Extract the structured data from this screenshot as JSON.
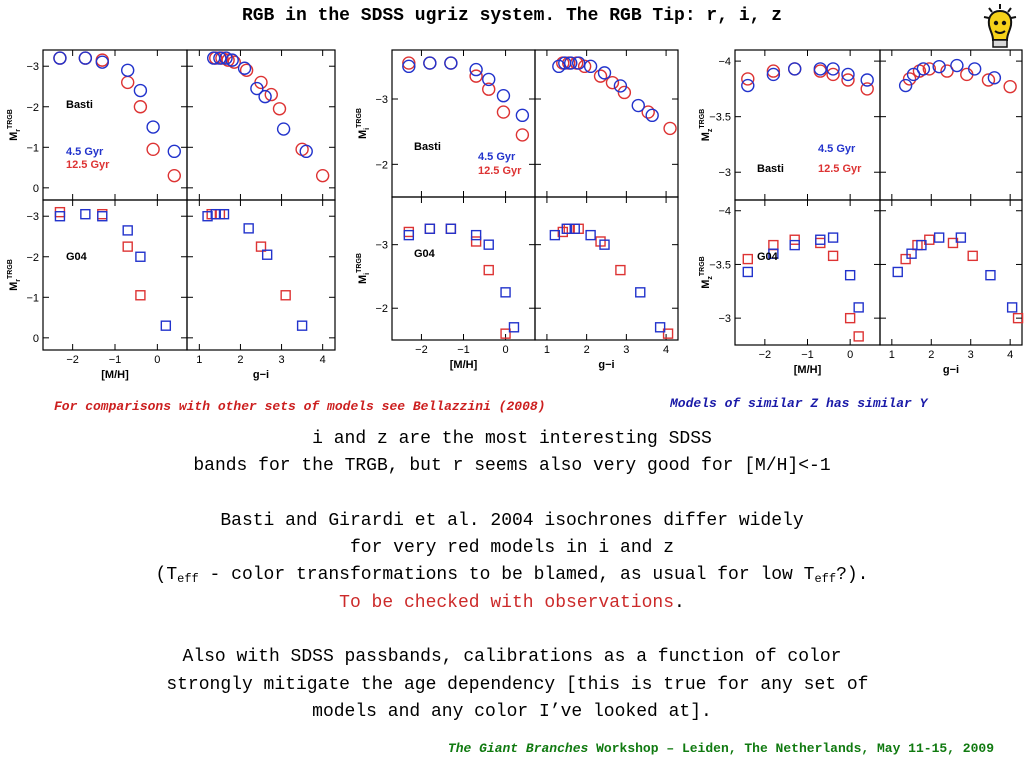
{
  "slide": {
    "title": "RGB in the SDSS ugriz system. The RGB Tip: r, i, z",
    "note_left": "For comparisons with other sets of models see Bellazzini (2008)",
    "note_right": "Models of similar Z has similar Y",
    "footer_italic": "The Giant Branches",
    "footer_rest": " Workshop – Leiden, The Netherlands, May 11-15, 2009",
    "para1_line1": "i and z are the most interesting SDSS",
    "para1_line2": "bands for the TRGB, but r seems also very good for [M/H]<-1",
    "para2_line1": "Basti and Girardi et al. 2004 isochrones differ widely",
    "para2_line2": "for very red models in i and z",
    "para2_line3_a": "(T",
    "para2_line3_sub1": "eff",
    "para2_line3_b": " - color transformations to be blamed, as usual for low T",
    "para2_line3_sub2": "eff",
    "para2_line3_c": "?).",
    "para2_line4_red": "To be checked with observations",
    "para2_line4_end": ".",
    "para3_line1": "Also with SDSS passbands, calibrations as a function of color",
    "para3_line2": " strongly mitigate the age dependency [this is true for any set of",
    "para3_line3": "models and any color I’ve looked at]."
  },
  "colors": {
    "young": "#2233cc",
    "old": "#dd3333",
    "title": "#000000",
    "note_left": "#cc1f1f",
    "note_right": "#1a1aa8",
    "footer": "#107a10"
  },
  "icons": {
    "mascot": "lightbulb-head-icon"
  },
  "chart_data": [
    {
      "type": "scatter",
      "band": "r",
      "ylabel": "M",
      "ylabel_sup": "TRGB",
      "ylabel_sub": "r",
      "ylim": [
        0.3,
        -3.4
      ],
      "yticks": [
        -3,
        -2,
        -1,
        0
      ],
      "ytick_labels": [
        "−3",
        "−2",
        "−1",
        "0"
      ],
      "left": {
        "xlim": [
          -2.7,
          0.7
        ],
        "xticks": [
          -2,
          -1,
          0
        ],
        "xtick_labels": [
          "−2",
          "−1",
          "0"
        ],
        "xlabel": "[M/H]"
      },
      "right": {
        "xlim": [
          0.7,
          4.3
        ],
        "xticks": [
          1,
          2,
          3,
          4
        ],
        "xtick_labels": [
          "1",
          "2",
          "3",
          "4"
        ],
        "xlabel": "g−i"
      },
      "top": {
        "label": "Basti",
        "legend": [
          "4.5 Gyr",
          "12.5 Gyr"
        ],
        "ylim": [
          0.3,
          -3.4
        ],
        "yticks": [
          -3,
          -2,
          -1,
          0
        ],
        "ytick_labels": [
          "−3",
          "−2",
          "−1",
          "0"
        ],
        "young_mh": [
          [
            -2.3,
            -3.2
          ],
          [
            -1.7,
            -3.2
          ],
          [
            -1.3,
            -3.1
          ],
          [
            -0.7,
            -2.9
          ],
          [
            -0.4,
            -2.4
          ],
          [
            -0.1,
            -1.5
          ],
          [
            0.4,
            -0.9
          ]
        ],
        "old_mh": [
          [
            -2.3,
            -3.2
          ],
          [
            -1.7,
            -3.2
          ],
          [
            -1.3,
            -3.15
          ],
          [
            -0.7,
            -2.6
          ],
          [
            -0.4,
            -2.0
          ],
          [
            -0.1,
            -0.95
          ],
          [
            0.4,
            -0.3
          ]
        ],
        "young_col": [
          [
            1.35,
            -3.2
          ],
          [
            1.5,
            -3.2
          ],
          [
            1.65,
            -3.2
          ],
          [
            1.8,
            -3.15
          ],
          [
            2.1,
            -2.95
          ],
          [
            2.4,
            -2.45
          ],
          [
            2.6,
            -2.25
          ],
          [
            3.05,
            -1.45
          ],
          [
            3.6,
            -0.9
          ]
        ],
        "old_col": [
          [
            1.4,
            -3.2
          ],
          [
            1.55,
            -3.2
          ],
          [
            1.7,
            -3.15
          ],
          [
            1.85,
            -3.1
          ],
          [
            2.15,
            -2.9
          ],
          [
            2.5,
            -2.6
          ],
          [
            2.75,
            -2.3
          ],
          [
            2.95,
            -1.95
          ],
          [
            3.5,
            -0.95
          ],
          [
            4.0,
            -0.3
          ]
        ]
      },
      "bottom": {
        "label": "G04",
        "ylim": [
          0.3,
          -3.4
        ],
        "yticks": [
          -3,
          -2,
          -1,
          0
        ],
        "ytick_labels": [
          "−3",
          "−2",
          "−1",
          "0"
        ],
        "young_mh": [
          [
            -2.3,
            -3.0
          ],
          [
            -1.7,
            -3.05
          ],
          [
            -1.3,
            -3.0
          ],
          [
            -0.7,
            -2.65
          ],
          [
            -0.4,
            -2.0
          ],
          [
            0.2,
            -0.3
          ]
        ],
        "old_mh": [
          [
            -2.3,
            -3.1
          ],
          [
            -1.3,
            -3.05
          ],
          [
            -0.7,
            -2.25
          ],
          [
            -0.4,
            -1.05
          ]
        ],
        "young_col": [
          [
            1.2,
            -3.0
          ],
          [
            1.4,
            -3.05
          ],
          [
            1.6,
            -3.05
          ],
          [
            2.2,
            -2.7
          ],
          [
            2.65,
            -2.05
          ],
          [
            3.5,
            -0.3
          ]
        ],
        "old_col": [
          [
            1.3,
            -3.05
          ],
          [
            1.5,
            -3.05
          ],
          [
            2.5,
            -2.25
          ],
          [
            3.1,
            -1.05
          ]
        ]
      }
    },
    {
      "type": "scatter",
      "band": "i",
      "ylabel": "M",
      "ylabel_sup": "TRGB",
      "ylabel_sub": "i",
      "left": {
        "xlim": [
          -2.7,
          0.7
        ],
        "xticks": [
          -2,
          -1,
          0
        ],
        "xtick_labels": [
          "−2",
          "−1",
          "0"
        ],
        "xlabel": "[M/H]"
      },
      "right": {
        "xlim": [
          0.7,
          4.3
        ],
        "xticks": [
          1,
          2,
          3,
          4
        ],
        "xtick_labels": [
          "1",
          "2",
          "3",
          "4"
        ],
        "xlabel": "g−i"
      },
      "top": {
        "label": "Basti",
        "legend": [
          "4.5 Gyr",
          "12.5 Gyr"
        ],
        "ylim": [
          -1.5,
          -3.75
        ],
        "yticks": [
          -3,
          -2
        ],
        "ytick_labels": [
          "−3",
          "−2"
        ],
        "young_mh": [
          [
            -2.3,
            -3.5
          ],
          [
            -1.8,
            -3.55
          ],
          [
            -1.3,
            -3.55
          ],
          [
            -0.7,
            -3.45
          ],
          [
            -0.4,
            -3.3
          ],
          [
            -0.05,
            -3.05
          ],
          [
            0.4,
            -2.75
          ]
        ],
        "old_mh": [
          [
            -2.3,
            -3.55
          ],
          [
            -1.8,
            -3.55
          ],
          [
            -1.3,
            -3.55
          ],
          [
            -0.7,
            -3.35
          ],
          [
            -0.4,
            -3.15
          ],
          [
            -0.05,
            -2.8
          ],
          [
            0.4,
            -2.45
          ]
        ],
        "young_col": [
          [
            1.3,
            -3.5
          ],
          [
            1.45,
            -3.55
          ],
          [
            1.6,
            -3.55
          ],
          [
            1.8,
            -3.55
          ],
          [
            2.1,
            -3.5
          ],
          [
            2.45,
            -3.4
          ],
          [
            2.85,
            -3.2
          ],
          [
            3.3,
            -2.9
          ],
          [
            3.65,
            -2.75
          ]
        ],
        "old_col": [
          [
            1.4,
            -3.55
          ],
          [
            1.55,
            -3.55
          ],
          [
            1.75,
            -3.55
          ],
          [
            1.95,
            -3.5
          ],
          [
            2.35,
            -3.35
          ],
          [
            2.65,
            -3.25
          ],
          [
            2.95,
            -3.1
          ],
          [
            3.55,
            -2.8
          ],
          [
            4.1,
            -2.55
          ]
        ]
      },
      "bottom": {
        "label": "G04",
        "ylim": [
          -1.5,
          -3.75
        ],
        "yticks": [
          -3,
          -2
        ],
        "ytick_labels": [
          "−3",
          "−2"
        ],
        "young_mh": [
          [
            -2.3,
            -3.15
          ],
          [
            -1.8,
            -3.25
          ],
          [
            -1.3,
            -3.25
          ],
          [
            -0.7,
            -3.15
          ],
          [
            -0.4,
            -3.0
          ],
          [
            0.0,
            -2.25
          ],
          [
            0.2,
            -1.7
          ]
        ],
        "old_mh": [
          [
            -2.3,
            -3.2
          ],
          [
            -1.8,
            -3.25
          ],
          [
            -1.3,
            -3.25
          ],
          [
            -0.7,
            -3.05
          ],
          [
            -0.4,
            -2.6
          ],
          [
            0.0,
            -1.6
          ]
        ],
        "young_col": [
          [
            1.2,
            -3.15
          ],
          [
            1.5,
            -3.25
          ],
          [
            1.7,
            -3.25
          ],
          [
            2.1,
            -3.15
          ],
          [
            2.45,
            -3.0
          ],
          [
            3.35,
            -2.25
          ],
          [
            3.85,
            -1.7
          ]
        ],
        "old_col": [
          [
            1.4,
            -3.2
          ],
          [
            1.55,
            -3.25
          ],
          [
            1.8,
            -3.25
          ],
          [
            2.35,
            -3.05
          ],
          [
            2.85,
            -2.6
          ],
          [
            4.05,
            -1.6
          ]
        ]
      }
    },
    {
      "type": "scatter",
      "band": "z",
      "ylabel": "M",
      "ylabel_sup": "TRGB",
      "ylabel_sub": "z",
      "left": {
        "xlim": [
          -2.7,
          0.7
        ],
        "xticks": [
          -2,
          -1,
          0
        ],
        "xtick_labels": [
          "−2",
          "−1",
          "0"
        ],
        "xlabel": "[M/H]"
      },
      "right": {
        "xlim": [
          0.7,
          4.3
        ],
        "xticks": [
          1,
          2,
          3,
          4
        ],
        "xtick_labels": [
          "1",
          "2",
          "3",
          "4"
        ],
        "xlabel": "g−i"
      },
      "top": {
        "label": "Basti",
        "legend": [
          "4.5 Gyr",
          "12.5 Gyr"
        ],
        "ylim": [
          -2.75,
          -4.1
        ],
        "yticks": [
          -4,
          -3.5,
          -3
        ],
        "ytick_labels": [
          "−4",
          "−3.5",
          "−3"
        ],
        "young_mh": [
          [
            -2.4,
            -3.78
          ],
          [
            -1.8,
            -3.88
          ],
          [
            -1.3,
            -3.93
          ],
          [
            -0.7,
            -3.93
          ],
          [
            -0.4,
            -3.93
          ],
          [
            -0.05,
            -3.88
          ],
          [
            0.4,
            -3.83
          ]
        ],
        "old_mh": [
          [
            -2.4,
            -3.84
          ],
          [
            -1.8,
            -3.91
          ],
          [
            -1.3,
            -3.93
          ],
          [
            -0.7,
            -3.91
          ],
          [
            -0.4,
            -3.88
          ],
          [
            -0.05,
            -3.83
          ],
          [
            0.4,
            -3.75
          ]
        ],
        "young_col": [
          [
            1.35,
            -3.78
          ],
          [
            1.55,
            -3.88
          ],
          [
            1.8,
            -3.93
          ],
          [
            2.2,
            -3.95
          ],
          [
            2.65,
            -3.96
          ],
          [
            3.1,
            -3.93
          ],
          [
            3.6,
            -3.85
          ]
        ],
        "old_col": [
          [
            1.45,
            -3.84
          ],
          [
            1.7,
            -3.91
          ],
          [
            1.95,
            -3.93
          ],
          [
            2.4,
            -3.91
          ],
          [
            2.9,
            -3.88
          ],
          [
            3.45,
            -3.83
          ],
          [
            4.0,
            -3.77
          ]
        ]
      },
      "bottom": {
        "label": "G04",
        "ylim": [
          -2.75,
          -4.1
        ],
        "yticks": [
          -4,
          -3.5,
          -3
        ],
        "ytick_labels": [
          "−4",
          "−3.5",
          "−3"
        ],
        "young_mh": [
          [
            -2.4,
            -3.43
          ],
          [
            -1.8,
            -3.6
          ],
          [
            -1.3,
            -3.68
          ],
          [
            -0.7,
            -3.73
          ],
          [
            -0.4,
            -3.75
          ],
          [
            0.0,
            -3.4
          ],
          [
            0.2,
            -3.1
          ]
        ],
        "old_mh": [
          [
            -2.4,
            -3.55
          ],
          [
            -1.8,
            -3.68
          ],
          [
            -1.3,
            -3.73
          ],
          [
            -0.7,
            -3.7
          ],
          [
            -0.4,
            -3.58
          ],
          [
            0.0,
            -3.0
          ],
          [
            0.2,
            -2.83
          ]
        ],
        "young_col": [
          [
            1.15,
            -3.43
          ],
          [
            1.5,
            -3.6
          ],
          [
            1.75,
            -3.68
          ],
          [
            2.2,
            -3.75
          ],
          [
            2.75,
            -3.75
          ],
          [
            3.5,
            -3.4
          ],
          [
            4.05,
            -3.1
          ]
        ],
        "old_col": [
          [
            1.35,
            -3.55
          ],
          [
            1.65,
            -3.68
          ],
          [
            1.95,
            -3.73
          ],
          [
            2.55,
            -3.7
          ],
          [
            3.05,
            -3.58
          ],
          [
            4.2,
            -3.0
          ]
        ]
      }
    }
  ]
}
